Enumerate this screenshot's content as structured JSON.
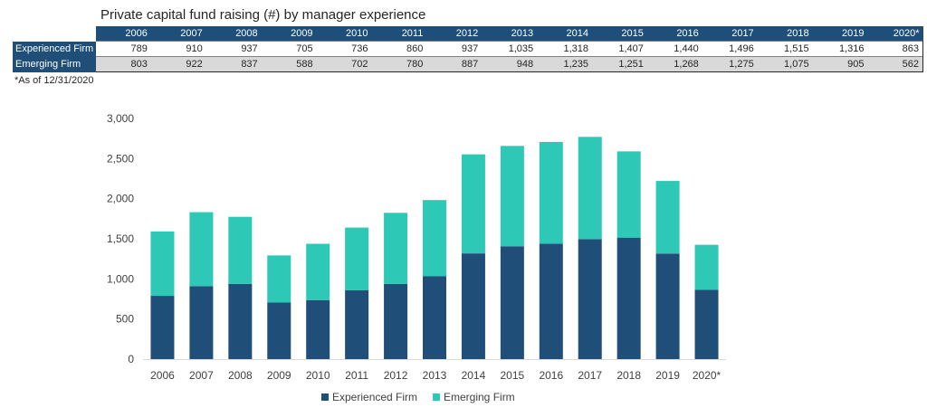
{
  "title": "Private capital fund raising (#) by manager experience",
  "note": "*As of 12/31/2020",
  "colors": {
    "experienced": "#1f4e79",
    "emerging": "#2ec9b6",
    "header": "#1f4e79"
  },
  "table": {
    "years": [
      "2006",
      "2007",
      "2008",
      "2009",
      "2010",
      "2011",
      "2012",
      "2013",
      "2014",
      "2015",
      "2016",
      "2017",
      "2018",
      "2019",
      "2020*"
    ],
    "rows": [
      {
        "label": "Experienced Firm",
        "values": [
          "789",
          "910",
          "937",
          "705",
          "736",
          "860",
          "937",
          "1,035",
          "1,318",
          "1,407",
          "1,440",
          "1,496",
          "1,515",
          "1,316",
          "863"
        ]
      },
      {
        "label": "Emerging Firm",
        "values": [
          "803",
          "922",
          "837",
          "588",
          "702",
          "780",
          "887",
          "948",
          "1,235",
          "1,251",
          "1,268",
          "1,275",
          "1,075",
          "905",
          "562"
        ]
      }
    ]
  },
  "chart_data": {
    "type": "bar",
    "stacked": true,
    "categories": [
      "2006",
      "2007",
      "2008",
      "2009",
      "2010",
      "2011",
      "2012",
      "2013",
      "2014",
      "2015",
      "2016",
      "2017",
      "2018",
      "2019",
      "2020*"
    ],
    "series": [
      {
        "name": "Experienced Firm",
        "values": [
          789,
          910,
          937,
          705,
          736,
          860,
          937,
          1035,
          1318,
          1407,
          1440,
          1496,
          1515,
          1316,
          863
        ]
      },
      {
        "name": "Emerging Firm",
        "values": [
          803,
          922,
          837,
          588,
          702,
          780,
          887,
          948,
          1235,
          1251,
          1268,
          1275,
          1075,
          905,
          562
        ]
      }
    ],
    "ylim": [
      0,
      3000
    ],
    "yticks": [
      0,
      500,
      1000,
      1500,
      2000,
      2500,
      3000
    ],
    "ytick_labels": [
      "0",
      "500",
      "1,000",
      "1,500",
      "2,000",
      "2,500",
      "3,000"
    ],
    "grid": false,
    "legend": "bottom-center"
  }
}
